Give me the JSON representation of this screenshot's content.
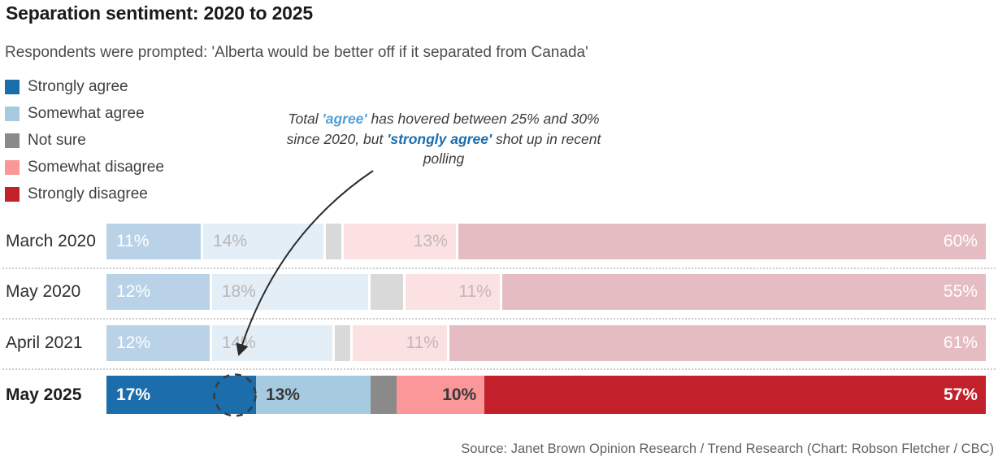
{
  "header": {
    "title": "Separation sentiment: 2020 to 2025",
    "subtitle": "Respondents were prompted: 'Alberta would be better off if it separated from Canada'"
  },
  "legend": {
    "items": [
      {
        "label": "Strongly agree",
        "color": "#1c6dab"
      },
      {
        "label": "Somewhat agree",
        "color": "#a6cbe1"
      },
      {
        "label": "Not sure",
        "color": "#8a8a8a"
      },
      {
        "label": "Somewhat disagree",
        "color": "#fb9699"
      },
      {
        "label": "Strongly disagree",
        "color": "#c2202b"
      }
    ]
  },
  "annotation": {
    "lines": [
      [
        {
          "text": "Total ",
          "style": "plain"
        },
        {
          "text": "'agree'",
          "style": "agree"
        },
        {
          "text": " has hovered between 25% and 30%",
          "style": "plain"
        }
      ],
      [
        {
          "text": "since 2020, but ",
          "style": "plain"
        },
        {
          "text": "'strongly agree'",
          "style": "strongly_agree"
        },
        {
          "text": " shot up in recent",
          "style": "plain"
        }
      ],
      [
        {
          "text": "polling",
          "style": "plain"
        }
      ]
    ],
    "styles": {
      "plain": "#3c3c3c",
      "agree": "#54a0d5",
      "strongly_agree": "#1c6dab"
    }
  },
  "chart_data": {
    "type": "bar",
    "stacked": true,
    "orientation": "horizontal",
    "unit": "%",
    "xlim": [
      0,
      100
    ],
    "grid": false,
    "legend_position": "top-left",
    "categories": [
      "March 2020",
      "May 2020",
      "April 2021",
      "May 2025"
    ],
    "series": [
      {
        "name": "Strongly agree",
        "key": "strongly_agree",
        "values": [
          11,
          12,
          12,
          17
        ]
      },
      {
        "name": "Somewhat agree",
        "key": "somewhat_agree",
        "values": [
          14,
          18,
          14,
          13
        ]
      },
      {
        "name": "Not sure",
        "key": "not_sure",
        "values": [
          2,
          4,
          2,
          3
        ],
        "labels_shown": false
      },
      {
        "name": "Somewhat disagree",
        "key": "somewhat_disagree",
        "values": [
          13,
          11,
          11,
          10
        ]
      },
      {
        "name": "Strongly disagree",
        "key": "strongly_disagree",
        "values": [
          60,
          55,
          61,
          57
        ]
      }
    ],
    "emphasized_category": "May 2025",
    "muted_categories": [
      "March 2020",
      "May 2020",
      "April 2021"
    ]
  },
  "colors": {
    "full": {
      "strongly_agree": "#1c6dab",
      "somewhat_agree": "#a6cbe1",
      "not_sure": "#8a8a8a",
      "somewhat_disagree": "#fb9699",
      "strongly_disagree": "#c2202b"
    },
    "muted": {
      "strongly_agree": "#b9d2e7",
      "somewhat_agree": "#e3eef7",
      "not_sure": "#d9d9d9",
      "somewhat_disagree": "#fce1e3",
      "strongly_disagree": "#e6bcc3"
    }
  },
  "value_labels": {
    "strongly_agree": {
      "align": "left",
      "full": "#ffffff",
      "muted": "#ffffff"
    },
    "somewhat_agree": {
      "align": "left",
      "full": "#383838",
      "muted": "#b7b7b7"
    },
    "somewhat_disagree": {
      "align": "right",
      "full": "#383838",
      "muted": "#c2b6b8"
    },
    "strongly_disagree": {
      "align": "right",
      "full": "#ffffff",
      "muted": "#ffffff"
    }
  },
  "source": "Source: Janet Brown Opinion Research / Trend Research (Chart: Robson Fletcher / CBC)"
}
